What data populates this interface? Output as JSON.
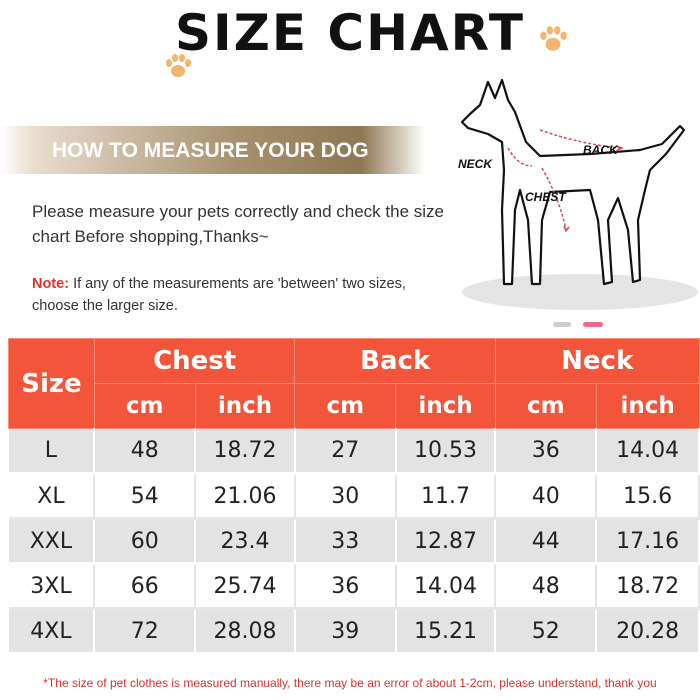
{
  "title": "SIZE CHART",
  "banner": "HOW TO MEASURE YOUR DOG",
  "instruction": "Please measure your pets correctly and check the size chart Before shopping,Thanks~",
  "note": {
    "label": "Note:",
    "text": " If any of the measurements are 'between' two sizes, choose the larger size."
  },
  "dog_labels": {
    "neck": "NECK",
    "back": "BACK",
    "chest": "CHEST"
  },
  "icons": {
    "paw_left": "paw-icon",
    "paw_right": "paw-icon",
    "dog": "dog-silhouette-icon"
  },
  "colors": {
    "header": "#f2553a",
    "note_label": "#e0332a",
    "footnote": "#d6322c",
    "row_shade": "#e3e3e3",
    "banner": "#a8916f"
  },
  "table": {
    "size_header": "Size",
    "groups": [
      "Chest",
      "Back",
      "Neck"
    ],
    "units": [
      "cm",
      "inch",
      "cm",
      "inch",
      "cm",
      "inch"
    ],
    "rows": [
      [
        "L",
        "48",
        "18.72",
        "27",
        "10.53",
        "36",
        "14.04"
      ],
      [
        "XL",
        "54",
        "21.06",
        "30",
        "11.7",
        "40",
        "15.6"
      ],
      [
        "XXL",
        "60",
        "23.4",
        "33",
        "12.87",
        "44",
        "17.16"
      ],
      [
        "3XL",
        "66",
        "25.74",
        "36",
        "14.04",
        "48",
        "18.72"
      ],
      [
        "4XL",
        "72",
        "28.08",
        "39",
        "15.21",
        "52",
        "20.28"
      ]
    ]
  },
  "footnote": "*The size of pet clothes is measured manually, there may be an error of about 1-2cm, please understand, thank you"
}
